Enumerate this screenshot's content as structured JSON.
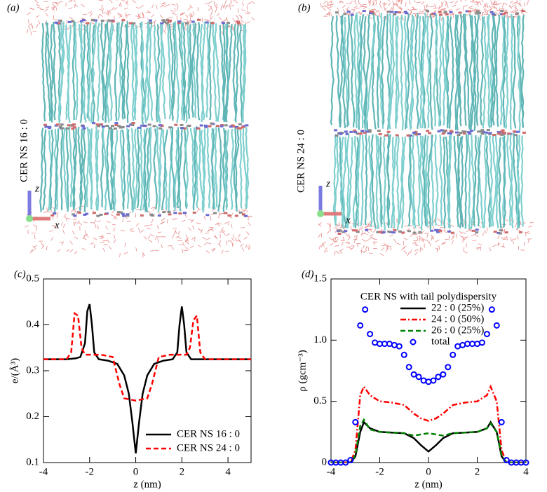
{
  "panels": [
    {
      "label": "(a)",
      "caption": "CER NS 16 : 0",
      "axis_z": "z",
      "axis_x": "x"
    },
    {
      "label": "(b)",
      "caption": "CER NS 24 : 0",
      "axis_z": "z",
      "axis_x": "x"
    }
  ],
  "chart_data": [
    {
      "type": "line",
      "label": "(c)",
      "xlabel": "z (nm)",
      "ylabel": "e/(Å³)",
      "xlim": [
        -4,
        5
      ],
      "xticks": [
        -4,
        -2,
        0,
        2,
        4
      ],
      "ylim": [
        0.1,
        0.5
      ],
      "yticks": [
        0.1,
        0.2,
        0.3,
        0.4,
        0.5
      ],
      "legend": "lower right",
      "series": [
        {
          "name": "CER NS 16 : 0",
          "color": "#000000",
          "style": "solid",
          "x": [
            -4,
            -3,
            -2.6,
            -2.4,
            -2.2,
            -2.1,
            -2.0,
            -1.9,
            -1.8,
            -1.6,
            -1.2,
            -0.8,
            -0.5,
            -0.3,
            -0.15,
            0,
            0.15,
            0.3,
            0.5,
            0.8,
            1.2,
            1.6,
            1.8,
            1.9,
            2.0,
            2.1,
            2.2,
            2.4,
            2.6,
            3,
            4,
            5
          ],
          "values": [
            0.325,
            0.325,
            0.327,
            0.33,
            0.36,
            0.43,
            0.445,
            0.4,
            0.34,
            0.325,
            0.322,
            0.315,
            0.29,
            0.25,
            0.19,
            0.12,
            0.19,
            0.25,
            0.29,
            0.315,
            0.322,
            0.325,
            0.34,
            0.4,
            0.44,
            0.4,
            0.34,
            0.325,
            0.325,
            0.325,
            0.325,
            0.325
          ]
        },
        {
          "name": "CER NS 24 : 0",
          "color": "#ff0000",
          "style": "dashed",
          "x": [
            -4,
            -3,
            -2.8,
            -2.65,
            -2.5,
            -2.35,
            -2.2,
            -1.5,
            -1.0,
            -0.7,
            -0.5,
            0,
            0.5,
            0.7,
            1.0,
            1.5,
            2.2,
            2.35,
            2.5,
            2.65,
            2.8,
            3,
            4,
            5
          ],
          "values": [
            0.325,
            0.325,
            0.34,
            0.425,
            0.42,
            0.35,
            0.335,
            0.335,
            0.33,
            0.27,
            0.24,
            0.235,
            0.24,
            0.27,
            0.33,
            0.335,
            0.335,
            0.35,
            0.41,
            0.42,
            0.34,
            0.325,
            0.325,
            0.325
          ]
        }
      ]
    },
    {
      "type": "line",
      "label": "(d)",
      "xlabel": "z (nm)",
      "ylabel": "ρ (gcm⁻³)",
      "legend_title": "CER NS with tail polydispersity",
      "legend": "upper center",
      "xlim": [
        -4,
        4
      ],
      "xticks": [
        -4,
        -2,
        0,
        2,
        4
      ],
      "ylim": [
        0,
        1.5
      ],
      "yticks": [
        0,
        0.5,
        {
          "value": 1,
          "label": "1.0"
        },
        1.5
      ],
      "x": [
        -4,
        -3.2,
        -3.0,
        -2.8,
        -2.65,
        -2.4,
        -2.0,
        -1.5,
        -1.0,
        -0.6,
        -0.3,
        0,
        0.3,
        0.6,
        1.0,
        1.5,
        2.0,
        2.4,
        2.55,
        2.8,
        3.0,
        3.2,
        4
      ],
      "series": [
        {
          "name": "22 : 0 (25%)",
          "color": "#000000",
          "style": "solid",
          "values": [
            0,
            0,
            0.05,
            0.25,
            0.33,
            0.28,
            0.25,
            0.245,
            0.24,
            0.2,
            0.14,
            0.09,
            0.14,
            0.2,
            0.24,
            0.245,
            0.25,
            0.28,
            0.33,
            0.25,
            0.05,
            0,
            0
          ]
        },
        {
          "name": "24 : 0 (50%)",
          "color": "#ff0000",
          "style": "dashdot",
          "values": [
            0,
            0,
            0.1,
            0.55,
            0.62,
            0.55,
            0.5,
            0.49,
            0.47,
            0.4,
            0.36,
            0.34,
            0.36,
            0.4,
            0.47,
            0.49,
            0.5,
            0.55,
            0.62,
            0.5,
            0.1,
            0,
            0
          ]
        },
        {
          "name": "26 : 0 (25%)",
          "color": "#008000",
          "style": "dashed",
          "values": [
            0,
            0,
            0.06,
            0.3,
            0.35,
            0.27,
            0.25,
            0.245,
            0.24,
            0.22,
            0.23,
            0.24,
            0.23,
            0.22,
            0.24,
            0.245,
            0.25,
            0.28,
            0.32,
            0.25,
            0.06,
            0,
            0
          ]
        },
        {
          "name": "total",
          "color": "#0000ff",
          "style": "circle",
          "x": [
            -4,
            -3.8,
            -3.6,
            -3.4,
            -3.2,
            -3.0,
            -2.8,
            -2.6,
            -2.4,
            -2.2,
            -2.0,
            -1.8,
            -1.6,
            -1.4,
            -1.2,
            -1.0,
            -0.8,
            -0.6,
            -0.4,
            -0.2,
            0,
            0.2,
            0.4,
            0.6,
            0.8,
            1.0,
            1.2,
            1.4,
            1.6,
            1.8,
            2.0,
            2.2,
            2.4,
            2.6,
            2.8,
            3.0,
            3.2,
            3.4,
            3.6,
            3.8,
            4
          ],
          "values": [
            0,
            0,
            0,
            0,
            0.02,
            0.33,
            1.12,
            1.25,
            1.05,
            0.98,
            0.97,
            0.97,
            0.97,
            0.96,
            0.95,
            0.88,
            0.78,
            0.72,
            0.7,
            0.67,
            0.66,
            0.67,
            0.7,
            0.72,
            0.78,
            0.88,
            0.95,
            0.96,
            0.97,
            0.97,
            0.97,
            0.98,
            1.05,
            1.25,
            1.12,
            0.33,
            0.02,
            0,
            0,
            0,
            0
          ]
        }
      ]
    }
  ]
}
